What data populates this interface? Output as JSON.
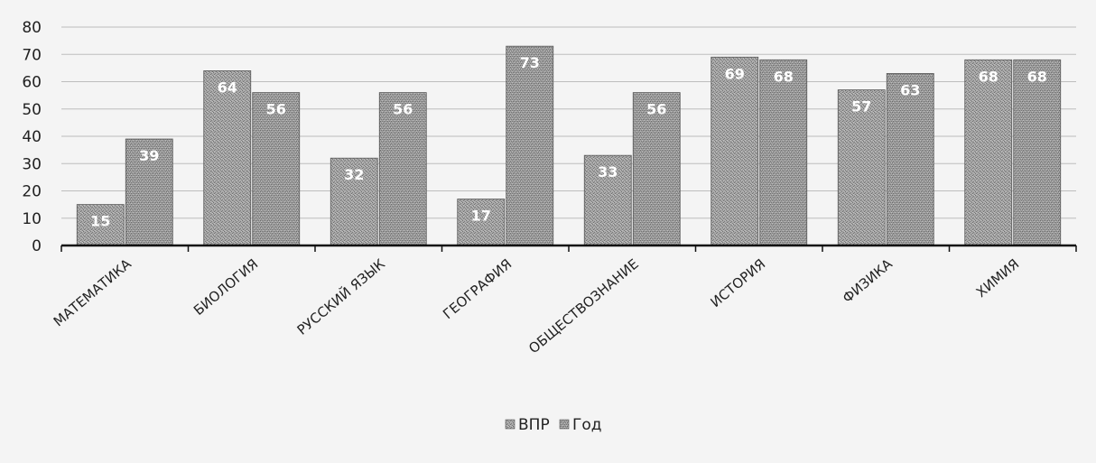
{
  "chart_data": {
    "type": "bar",
    "title": "",
    "xlabel": "",
    "ylabel": "",
    "ylim": [
      0,
      80
    ],
    "y_ticks": [
      0,
      10,
      20,
      30,
      40,
      50,
      60,
      70,
      80
    ],
    "grid": true,
    "legend_position": "bottom-center",
    "categories": [
      "МАТЕМАТИКА",
      "БИОЛОГИЯ",
      "РУССКИЙ ЯЗЫК",
      "ГЕОГРАФИЯ",
      "ОБЩЕСТВОЗНАНИЕ",
      "ИСТОРИЯ",
      "ФИЗИКА",
      "ХИМИЯ"
    ],
    "series": [
      {
        "name": "ВПР",
        "values": [
          15,
          64,
          32,
          17,
          33,
          69,
          57,
          68
        ],
        "labels": [
          "15",
          "64",
          "32",
          "17",
          "33",
          "69",
          "57",
          "68"
        ]
      },
      {
        "name": "Год",
        "values": [
          39,
          56,
          56,
          73,
          56,
          68,
          63,
          68
        ],
        "labels": [
          "39",
          "56",
          "56",
          "73",
          "56",
          "68",
          "63",
          "68"
        ]
      }
    ],
    "colors": {
      "bar_fill": "#9a9a9a",
      "bar_stroke": "#555555",
      "grid": "#bdbdbd",
      "axis": "#111111"
    }
  }
}
